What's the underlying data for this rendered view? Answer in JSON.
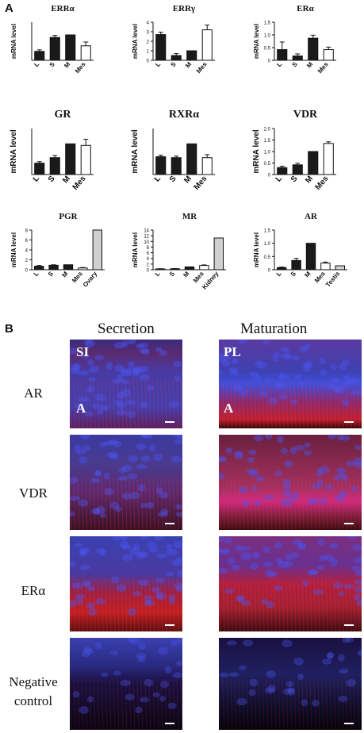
{
  "panels": {
    "a": "A",
    "b": "B"
  },
  "charts": [
    {
      "title": "ERRα",
      "ylabel": "mRNA level",
      "categories": [
        "L",
        "S",
        "M",
        "Mes"
      ],
      "values": [
        0.35,
        0.9,
        1.0,
        0.57
      ],
      "errors": [
        0.06,
        0.08,
        0.0,
        0.15
      ],
      "ylim": [
        0,
        1.5
      ],
      "ticks": [],
      "fills": [
        "#1a1a1a",
        "#1a1a1a",
        "#1a1a1a",
        "#ffffff"
      ]
    },
    {
      "title": "ERRγ",
      "ylabel": "mRNA level",
      "categories": [
        "L",
        "S",
        "M",
        "Mes"
      ],
      "values": [
        2.7,
        0.5,
        1.0,
        3.2
      ],
      "errors": [
        0.25,
        0.2,
        0.0,
        0.5
      ],
      "ylim": [
        0,
        4
      ],
      "ticks": [
        "0",
        "1",
        "2",
        "3",
        "4"
      ],
      "fills": [
        "#1a1a1a",
        "#1a1a1a",
        "#1a1a1a",
        "#ffffff"
      ]
    },
    {
      "title": "ERα",
      "ylabel": "mRNA level",
      "categories": [
        "L",
        "S",
        "M",
        "Mes"
      ],
      "values": [
        0.42,
        0.17,
        0.87,
        0.42
      ],
      "errors": [
        0.3,
        0.08,
        0.12,
        0.1
      ],
      "ylim": [
        0,
        1.5
      ],
      "ticks": [
        "0",
        "0.5",
        "1.0",
        "1.5"
      ],
      "fills": [
        "#1a1a1a",
        "#1a1a1a",
        "#1a1a1a",
        "#ffffff"
      ]
    },
    {
      "title": "GR",
      "ylabel": "mRNA level",
      "categories": [
        "L",
        "S",
        "M",
        "Mes"
      ],
      "values": [
        0.37,
        0.55,
        1.0,
        0.95
      ],
      "errors": [
        0.05,
        0.07,
        0.0,
        0.2
      ],
      "ylim": [
        0,
        1.5
      ],
      "ticks": [],
      "fills": [
        "#1a1a1a",
        "#1a1a1a",
        "#1a1a1a",
        "#ffffff"
      ]
    },
    {
      "title": "RXRα",
      "ylabel": "mRNA level",
      "categories": [
        "L",
        "S",
        "M",
        "Mes"
      ],
      "values": [
        0.58,
        0.55,
        1.0,
        0.55
      ],
      "errors": [
        0.05,
        0.05,
        0.0,
        0.1
      ],
      "ylim": [
        0,
        1.5
      ],
      "ticks": [],
      "fills": [
        "#1a1a1a",
        "#1a1a1a",
        "#1a1a1a",
        "#ffffff"
      ]
    },
    {
      "title": "VDR",
      "ylabel": "mRNA level",
      "categories": [
        "L",
        "S",
        "M",
        "Mes"
      ],
      "values": [
        0.3,
        0.42,
        1.0,
        1.35
      ],
      "errors": [
        0.06,
        0.07,
        0.0,
        0.07
      ],
      "ylim": [
        0,
        2.0
      ],
      "ticks": [
        "0",
        "0.5",
        "1.0",
        "1.5",
        "2.0"
      ],
      "fills": [
        "#1a1a1a",
        "#1a1a1a",
        "#1a1a1a",
        "#ffffff"
      ]
    },
    {
      "title": "PGR",
      "ylabel": "mRNA level",
      "categories": [
        "L",
        "S",
        "M",
        "Mes",
        "Ovary"
      ],
      "values": [
        0.7,
        0.9,
        1.0,
        0.35,
        8.0
      ],
      "errors": [
        0.15,
        0.1,
        0.0,
        0.1,
        0.0
      ],
      "ylim": [
        0,
        8
      ],
      "ticks": [
        "0",
        "2",
        "4",
        "6",
        "8"
      ],
      "fills": [
        "#1a1a1a",
        "#1a1a1a",
        "#1a1a1a",
        "#ffffff",
        "#d0d0d0"
      ]
    },
    {
      "title": "MR",
      "ylabel": "mRNA level",
      "categories": [
        "L",
        "S",
        "M",
        "Mes",
        "Kidney"
      ],
      "values": [
        0.3,
        0.35,
        1.0,
        1.5,
        11.2
      ],
      "errors": [
        0.05,
        0.05,
        0.0,
        0.2,
        0.0
      ],
      "ylim": [
        0,
        14
      ],
      "ticks": [
        "0",
        "2",
        "4",
        "6",
        "8",
        "10",
        "12",
        "14"
      ],
      "fills": [
        "#1a1a1a",
        "#1a1a1a",
        "#1a1a1a",
        "#ffffff",
        "#d0d0d0"
      ]
    },
    {
      "title": "AR",
      "ylabel": "mRNA level",
      "categories": [
        "L",
        "S",
        "M",
        "Mes",
        "Testis"
      ],
      "values": [
        0.08,
        0.35,
        1.0,
        0.25,
        0.15
      ],
      "errors": [
        0.02,
        0.08,
        0.0,
        0.04,
        0.0
      ],
      "ylim": [
        0,
        1.5
      ],
      "ticks": [
        "0",
        "0.5",
        "1.0",
        "1.5"
      ],
      "fills": [
        "#1a1a1a",
        "#1a1a1a",
        "#1a1a1a",
        "#ffffff",
        "#d0d0d0"
      ]
    }
  ],
  "panel_b": {
    "col_secretion": "Secretion",
    "col_maturation": "Maturation",
    "rows": [
      "AR",
      "VDR",
      "ERα",
      "Negative\ncontrol"
    ],
    "overlay_si": "SI",
    "overlay_pl": "PL",
    "overlay_a": "A"
  },
  "colors": {
    "nuclei": "#3a3fd0",
    "stain": "#d4202a",
    "background": "#0a0510"
  }
}
